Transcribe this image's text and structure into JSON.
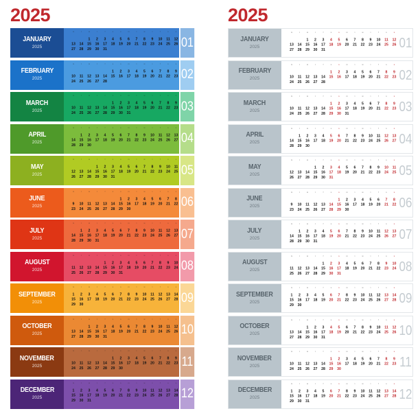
{
  "year_left": "2025",
  "year_right": "2025",
  "colors": {
    "title_red": "#c0282d",
    "gray_block": "#b9c4cb",
    "gray_text": "#58646c",
    "day_dark": "#1a1a1a",
    "day_red": "#c0282d",
    "weekday_header": "#555555"
  },
  "weekday_header": [
    "m",
    "t",
    "w",
    "t",
    "f",
    "s",
    "s"
  ],
  "months": [
    {
      "name": "JANUARY",
      "year": "2025",
      "number": "01",
      "color": "#1b4d94",
      "accent": "#3b7fd0",
      "light": "#89b6e3",
      "start": 2,
      "days": 31
    },
    {
      "name": "FEBRUARY",
      "year": "2025",
      "number": "02",
      "color": "#1b72c9",
      "accent": "#4b9be0",
      "light": "#9fcdf1",
      "start": 5,
      "days": 28
    },
    {
      "name": "MARCH",
      "year": "2025",
      "number": "03",
      "color": "#138443",
      "accent": "#17a862",
      "light": "#7fd4a8",
      "start": 5,
      "days": 31
    },
    {
      "name": "APRIL",
      "year": "2025",
      "number": "04",
      "color": "#4f9a2a",
      "accent": "#7cbc3c",
      "light": "#b5dd8a",
      "start": 1,
      "days": 30
    },
    {
      "name": "MAY",
      "year": "2025",
      "number": "05",
      "color": "#8db020",
      "accent": "#b1cb23",
      "light": "#d8e686",
      "start": 3,
      "days": 31
    },
    {
      "name": "JUNE",
      "year": "2025",
      "number": "06",
      "color": "#ec5b1c",
      "accent": "#f48a3a",
      "light": "#f9bf91",
      "start": 6,
      "days": 30
    },
    {
      "name": "JULY",
      "year": "2025",
      "number": "07",
      "color": "#df3515",
      "accent": "#ee6a3d",
      "light": "#f5a98d",
      "start": 1,
      "days": 31
    },
    {
      "name": "AUGUST",
      "year": "2025",
      "number": "08",
      "color": "#d1152e",
      "accent": "#e64c64",
      "light": "#f29aaa",
      "start": 4,
      "days": 31
    },
    {
      "name": "SEPTEMBER",
      "year": "2025",
      "number": "09",
      "color": "#f28f07",
      "accent": "#f7b33a",
      "light": "#fbd796",
      "start": 0,
      "days": 30
    },
    {
      "name": "OCTOBER",
      "year": "2025",
      "number": "10",
      "color": "#cf5a0d",
      "accent": "#eb8933",
      "light": "#f5c08e",
      "start": 2,
      "days": 31
    },
    {
      "name": "NOVEMBER",
      "year": "2025",
      "number": "11",
      "color": "#8b3a12",
      "accent": "#b96a3e",
      "light": "#d7a98d",
      "start": 5,
      "days": 30
    },
    {
      "name": "DECEMBER",
      "year": "2025",
      "number": "12",
      "color": "#4c2577",
      "accent": "#7d4fab",
      "light": "#b79fd6",
      "start": 0,
      "days": 31
    }
  ]
}
